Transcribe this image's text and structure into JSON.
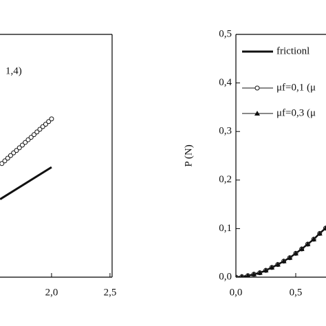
{
  "chart_data": [
    {
      "type": "line",
      "annotation": "1,4)",
      "xlim": [
        1.559,
        2.518
      ],
      "xticks": [
        {
          "value": 2.0,
          "label": "2,0"
        },
        {
          "value": 2.5,
          "label": "2,5"
        }
      ],
      "ylim": [
        0,
        1
      ],
      "series": [
        {
          "color": "#111",
          "marker": "line",
          "x": [
            1.56,
            2.0
          ],
          "values": [
            0.321,
            0.453
          ]
        },
        {
          "color": "#111",
          "marker": "circle",
          "x": [
            1.575,
            1.6,
            1.625,
            1.65,
            1.675,
            1.7,
            1.725,
            1.75,
            1.775,
            1.8,
            1.825,
            1.85,
            1.875,
            1.9,
            1.925,
            1.95,
            1.975,
            2.0
          ],
          "values": [
            0.468,
            0.479,
            0.49,
            0.501,
            0.512,
            0.522,
            0.533,
            0.544,
            0.555,
            0.566,
            0.576,
            0.587,
            0.598,
            0.609,
            0.62,
            0.63,
            0.641,
            0.652
          ]
        }
      ]
    },
    {
      "type": "line",
      "ylabel": "P (N)",
      "xlim": [
        0,
        0.753
      ],
      "xticks": [
        {
          "value": 0,
          "label": "0,0"
        },
        {
          "value": 0.5,
          "label": "0,5"
        }
      ],
      "ylim": [
        0,
        0.5
      ],
      "yticks": [
        {
          "value": 0,
          "label": "0,0"
        },
        {
          "value": 0.1,
          "label": "0,1"
        },
        {
          "value": 0.2,
          "label": "0,2"
        },
        {
          "value": 0.3,
          "label": "0,3"
        },
        {
          "value": 0.4,
          "label": "0,4"
        },
        {
          "value": 0.5,
          "label": "0,5"
        }
      ],
      "series": [
        {
          "name": "frictionl",
          "color": "#111",
          "marker": "line",
          "x": [
            0,
            0.05,
            0.1,
            0.15,
            0.2,
            0.25,
            0.3,
            0.35,
            0.4,
            0.45,
            0.5,
            0.55,
            0.6,
            0.65,
            0.7,
            0.75
          ],
          "values": [
            0,
            0.001,
            0.003,
            0.006,
            0.009,
            0.014,
            0.02,
            0.026,
            0.033,
            0.04,
            0.049,
            0.058,
            0.068,
            0.078,
            0.09,
            0.101
          ]
        },
        {
          "name": "μf=0,1 (μ",
          "color": "#111",
          "marker": "circle",
          "x": [
            0,
            0.05,
            0.1,
            0.15,
            0.2,
            0.25,
            0.3,
            0.35,
            0.4,
            0.45,
            0.5,
            0.55,
            0.6,
            0.65,
            0.7,
            0.75
          ],
          "values": [
            0,
            0.001,
            0.003,
            0.006,
            0.009,
            0.014,
            0.02,
            0.026,
            0.033,
            0.04,
            0.049,
            0.058,
            0.068,
            0.078,
            0.09,
            0.101
          ]
        },
        {
          "name": "μf=0,3 (μ",
          "color": "#111",
          "marker": "triangle",
          "x": [
            0,
            0.05,
            0.1,
            0.15,
            0.2,
            0.25,
            0.3,
            0.35,
            0.4,
            0.45,
            0.5,
            0.55,
            0.6,
            0.65,
            0.7,
            0.75
          ],
          "values": [
            0,
            0.001,
            0.003,
            0.006,
            0.009,
            0.014,
            0.02,
            0.026,
            0.033,
            0.04,
            0.049,
            0.058,
            0.068,
            0.078,
            0.09,
            0.101
          ]
        }
      ]
    }
  ]
}
